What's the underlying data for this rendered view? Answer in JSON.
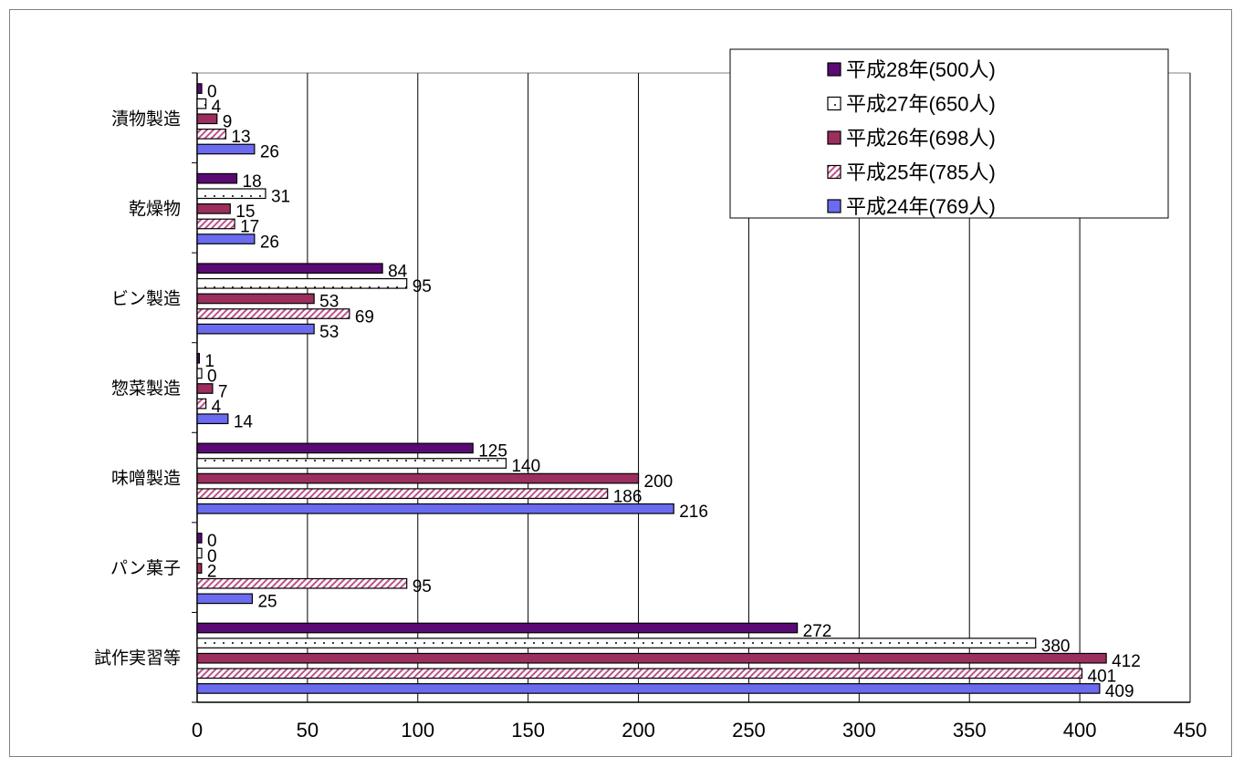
{
  "chart_data": {
    "type": "bar",
    "orientation": "horizontal",
    "title": "",
    "xlabel": "",
    "ylabel": "",
    "xlim": [
      0,
      450
    ],
    "x_ticks": [
      "0",
      "50",
      "100",
      "150",
      "200",
      "250",
      "300",
      "350",
      "400",
      "450"
    ],
    "grid": "vertical",
    "legend_position": "top-right",
    "categories": [
      "漬物製造",
      "乾燥物",
      "ビン製造",
      "惣菜製造",
      "味噌製造",
      "パン菓子",
      "試作実習等"
    ],
    "series": [
      {
        "name": "平成28年(500人)",
        "pattern": "solid",
        "color": "#5a0a73",
        "values": [
          0,
          18,
          84,
          1,
          125,
          0,
          272
        ]
      },
      {
        "name": "平成27年(650人)",
        "pattern": "dotted",
        "color": "#ffffff",
        "values": [
          4,
          31,
          95,
          0,
          140,
          0,
          380
        ]
      },
      {
        "name": "平成26年(698人)",
        "pattern": "solid",
        "color": "#9b2f5d",
        "values": [
          9,
          15,
          53,
          7,
          200,
          2,
          412
        ]
      },
      {
        "name": "平成25年(785人)",
        "pattern": "hatched",
        "color": "#c0508a",
        "values": [
          13,
          17,
          69,
          4,
          186,
          95,
          401
        ]
      },
      {
        "name": "平成24年(769人)",
        "pattern": "solid",
        "color": "#6b6bf0",
        "values": [
          26,
          26,
          53,
          14,
          216,
          25,
          409
        ]
      }
    ]
  }
}
